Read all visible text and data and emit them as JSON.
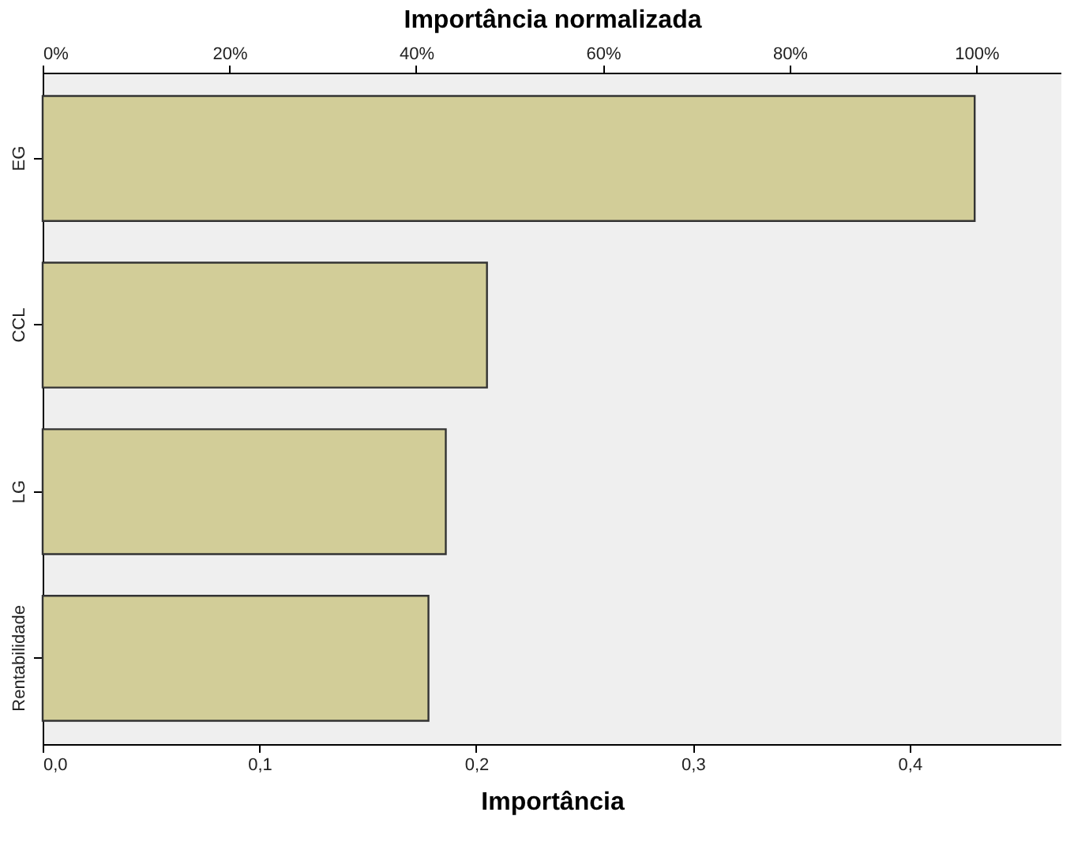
{
  "chart_data": {
    "type": "bar",
    "orientation": "horizontal",
    "categories": [
      "EG",
      "CCL",
      "LG",
      "Rentabilidade"
    ],
    "values": [
      0.43,
      0.205,
      0.186,
      0.178
    ],
    "color": "#d2cd98",
    "xlabel": "Importância",
    "x2label": "Importância normalizada",
    "xlim": [
      0,
      0.47
    ],
    "xticks": [
      {
        "value": 0,
        "label": "0,0"
      },
      {
        "value": 0.1,
        "label": "0,1"
      },
      {
        "value": 0.2,
        "label": "0,2"
      },
      {
        "value": 0.3,
        "label": "0,3"
      },
      {
        "value": 0.4,
        "label": "0,4"
      }
    ],
    "x2lim": [
      0,
      109.1
    ],
    "x2ticks": [
      {
        "value": 0,
        "label": "0%"
      },
      {
        "value": 20,
        "label": "20%"
      },
      {
        "value": 40,
        "label": "40%"
      },
      {
        "value": 60,
        "label": "60%"
      },
      {
        "value": 80,
        "label": "80%"
      },
      {
        "value": 100,
        "label": "100%"
      }
    ]
  }
}
